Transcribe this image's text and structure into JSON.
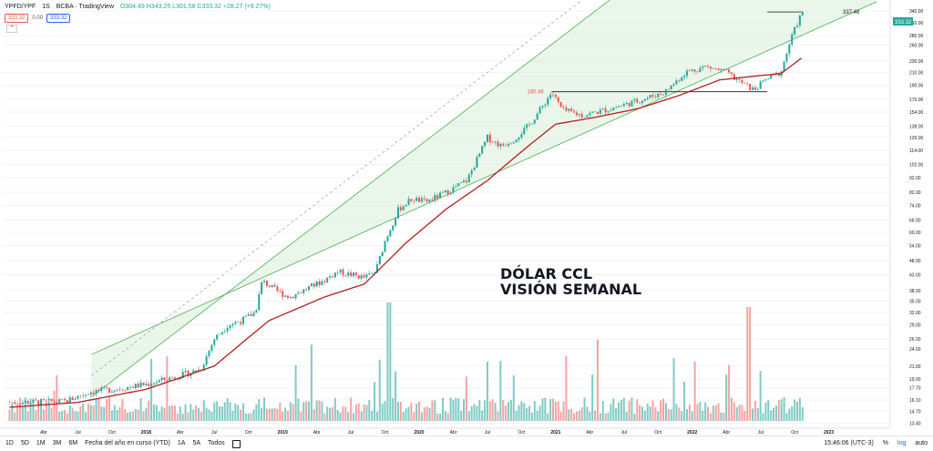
{
  "header": {
    "symbol": "YPFD/YPF",
    "interval": "1S",
    "exchange": "BCBA · TradingView",
    "ohlc": "O304.49 H343.25 L301.58 C333.32 +28.27 (+9.27%)",
    "bid": "333.32",
    "spread": "0.00",
    "ask": "333.32"
  },
  "annotations": {
    "title_line1": "DÓLAR CCL",
    "title_line2": "VISIÓN SEMANAL",
    "level_low": "180.48",
    "level_high": "337.48",
    "last_price": "333.32"
  },
  "toolbar": {
    "ranges": [
      "1D",
      "5D",
      "1M",
      "3M",
      "6M",
      "Fecha del año en curso (YTD)",
      "1A",
      "5A",
      "Todos"
    ],
    "time": "15:46:06 (UTC-3)",
    "pct": "%",
    "log": "log",
    "auto": "auto"
  },
  "colors": {
    "up": "#26a69a",
    "down": "#ef5350",
    "vol_up": "#80cbc4",
    "vol_down": "#f5a3a3",
    "ma": "#b71c1c",
    "channel_fill": "#d8efd8",
    "channel_line": "#4caf50"
  },
  "chart_data": {
    "type": "candlestick",
    "scale": "log",
    "y_ticks": [
      340,
      310,
      280,
      260,
      230,
      210,
      190,
      170,
      154,
      138,
      126,
      114,
      102,
      92,
      82,
      74,
      66,
      60,
      54,
      48,
      43,
      38,
      35,
      32,
      29,
      26,
      24,
      21,
      19,
      17.7,
      16.1,
      14.7,
      13.4
    ],
    "x_ticks": [
      "Abr",
      "Jul",
      "Oct",
      "2018",
      "Abr",
      "Jul",
      "Oct",
      "2019",
      "Abr",
      "Jul",
      "Oct",
      "2020",
      "Abr",
      "Jul",
      "Oct",
      "2021",
      "Abr",
      "Jul",
      "Oct",
      "2022",
      "Abr",
      "Jul",
      "Oct",
      "2023"
    ],
    "price_path": [
      [
        2017.0,
        15.8
      ],
      [
        2017.4,
        15.9
      ],
      [
        2017.6,
        17.2
      ],
      [
        2017.8,
        17.6
      ],
      [
        2018.0,
        18.2
      ],
      [
        2018.25,
        19.5
      ],
      [
        2018.4,
        20.5
      ],
      [
        2018.5,
        26
      ],
      [
        2018.6,
        29
      ],
      [
        2018.7,
        30
      ],
      [
        2018.8,
        32
      ],
      [
        2018.85,
        41
      ],
      [
        2018.95,
        38
      ],
      [
        2019.05,
        36
      ],
      [
        2019.2,
        39
      ],
      [
        2019.3,
        41
      ],
      [
        2019.4,
        44
      ],
      [
        2019.5,
        43
      ],
      [
        2019.6,
        42
      ],
      [
        2019.68,
        44
      ],
      [
        2019.75,
        56
      ],
      [
        2019.85,
        72
      ],
      [
        2019.95,
        78
      ],
      [
        2020.05,
        76
      ],
      [
        2020.2,
        82
      ],
      [
        2020.35,
        90
      ],
      [
        2020.5,
        126
      ],
      [
        2020.6,
        118
      ],
      [
        2020.7,
        125
      ],
      [
        2020.8,
        138
      ],
      [
        2020.9,
        160
      ],
      [
        2020.97,
        180
      ],
      [
        2021.05,
        156
      ],
      [
        2021.2,
        150
      ],
      [
        2021.4,
        158
      ],
      [
        2021.6,
        168
      ],
      [
        2021.8,
        180
      ],
      [
        2021.95,
        210
      ],
      [
        2022.1,
        220
      ],
      [
        2022.25,
        210
      ],
      [
        2022.35,
        195
      ],
      [
        2022.45,
        183
      ],
      [
        2022.55,
        200
      ],
      [
        2022.65,
        210
      ],
      [
        2022.72,
        270
      ],
      [
        2022.77,
        310
      ],
      [
        2022.8,
        333
      ]
    ],
    "ma_path": [
      [
        2017.0,
        15.2
      ],
      [
        2017.5,
        15.8
      ],
      [
        2018.0,
        17.5
      ],
      [
        2018.5,
        21
      ],
      [
        2018.9,
        30
      ],
      [
        2019.3,
        36
      ],
      [
        2019.6,
        40
      ],
      [
        2019.9,
        55
      ],
      [
        2020.2,
        72
      ],
      [
        2020.5,
        90
      ],
      [
        2020.8,
        118
      ],
      [
        2021.0,
        140
      ],
      [
        2021.3,
        148
      ],
      [
        2021.6,
        158
      ],
      [
        2021.9,
        175
      ],
      [
        2022.2,
        198
      ],
      [
        2022.5,
        205
      ],
      [
        2022.65,
        208
      ],
      [
        2022.8,
        235
      ]
    ],
    "levels": [
      {
        "price": 180.48,
        "from": 2020.97,
        "to": 2022.55
      },
      {
        "price": 337.48,
        "from": 2022.55,
        "to": 2022.8
      }
    ],
    "channel": {
      "start": 2017.6,
      "end": 2023.35,
      "lower_start": 16.5,
      "upper_start": 23,
      "growth_per_year": 2.27
    }
  }
}
